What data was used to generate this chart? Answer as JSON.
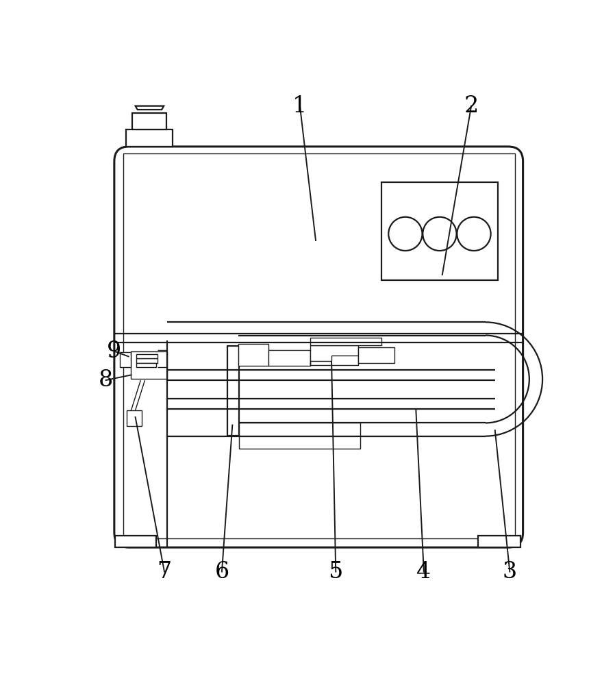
{
  "bg_color": "#ffffff",
  "line_color": "#1a1a1a",
  "lw_outer": 2.2,
  "lw_main": 1.6,
  "lw_thin": 1.0,
  "label_fontsize": 24
}
